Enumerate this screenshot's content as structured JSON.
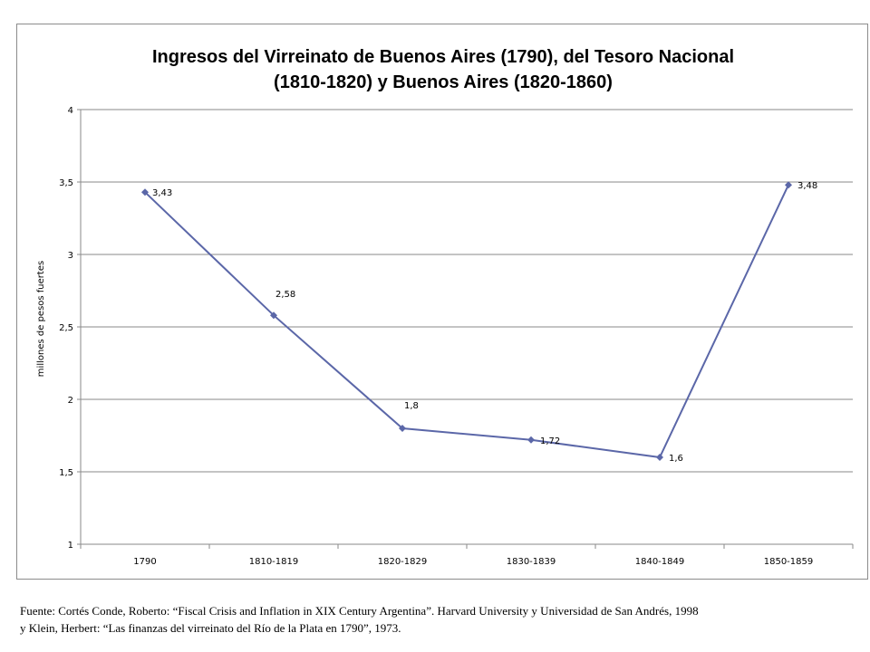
{
  "chart_data": {
    "type": "line",
    "title_lines": [
      "Ingresos del Virreinato de Buenos Aires (1790), del Tesoro Nacional",
      "(1810-1820) y Buenos Aires (1820-1860)"
    ],
    "ylabel": "millones de pesos fuertes",
    "xlabel": "",
    "categories": [
      "1790",
      "1810-1819",
      "1820-1829",
      "1830-1839",
      "1840-1849",
      "1850-1859"
    ],
    "values": [
      3.43,
      2.58,
      1.8,
      1.72,
      1.6,
      3.48
    ],
    "data_labels": [
      "3,43",
      "2,58",
      "1,8",
      "1,72",
      "1,6",
      "3,48"
    ],
    "ylim": [
      1,
      4
    ],
    "yticks": [
      1,
      1.5,
      2,
      2.5,
      3,
      3.5,
      4
    ],
    "ytick_labels": [
      "1",
      "1,5",
      "2",
      "2,5",
      "3",
      "3,5",
      "4"
    ],
    "grid": true,
    "legend": "none",
    "series_color": "#5b67a8"
  },
  "source_note": {
    "line1": "Fuente: Cortés Conde, Roberto: “Fiscal Crisis and Inflation in XIX Century Argentina”. Harvard University y Universidad de San Andrés, 1998",
    "line2": "y Klein, Herbert: “Las finanzas del virreinato del Río de la Plata en 1790”, 1973."
  }
}
